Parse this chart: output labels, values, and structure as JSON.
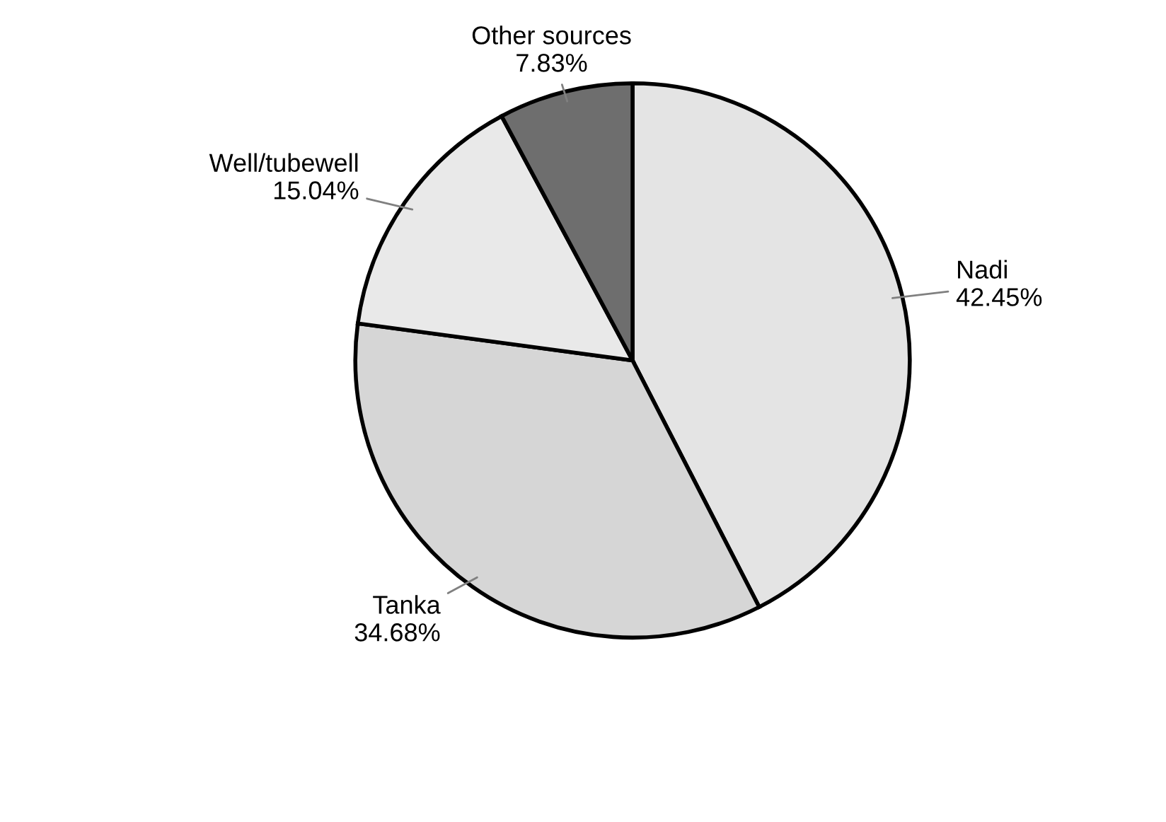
{
  "chart_data": {
    "type": "pie",
    "categories": [
      "Nadi",
      "Tanka",
      "Well/tubewell",
      "Other sources"
    ],
    "values": [
      42.45,
      34.68,
      15.04,
      7.83
    ],
    "value_labels": [
      "42.45%",
      "34.68%",
      "15.04%",
      "7.83%"
    ],
    "colors": [
      "#e4e4e4",
      "#d6d6d6",
      "#e9e9e9",
      "#6e6e6e"
    ],
    "legend": false
  }
}
